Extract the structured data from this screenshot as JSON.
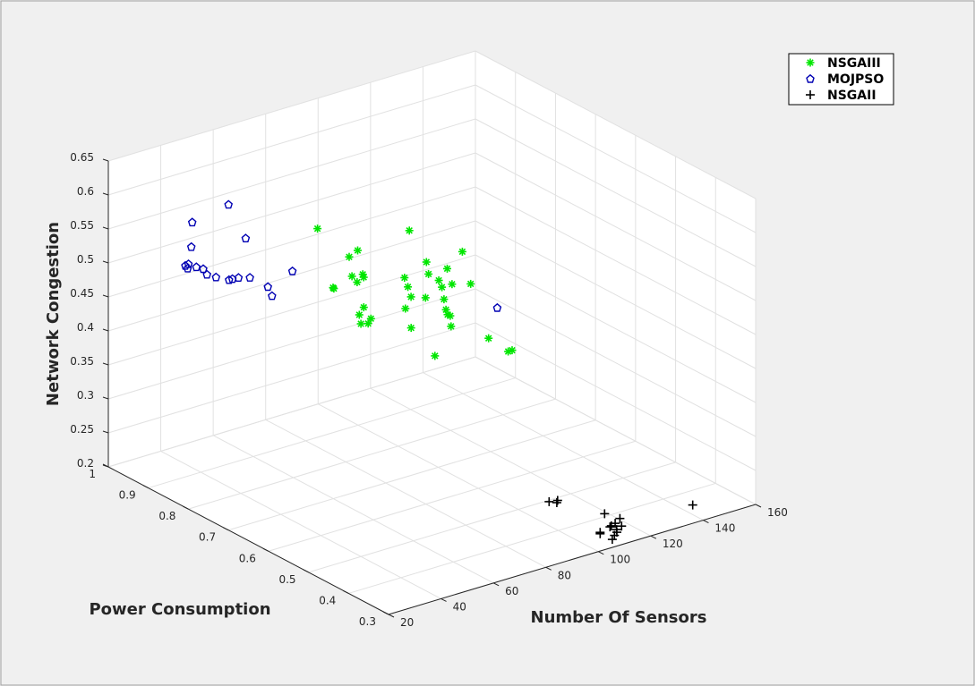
{
  "chart_data": {
    "type": "scatter3d",
    "title": "",
    "xlabel": "Number Of Sensors",
    "ylabel": "Power Consumption",
    "zlabel": "Network Congestion",
    "xlim": [
      20,
      160
    ],
    "ylim": [
      0.3,
      1
    ],
    "zlim": [
      0.2,
      0.65
    ],
    "x_ticks": [
      "20",
      "40",
      "60",
      "80",
      "100",
      "120",
      "140",
      "160"
    ],
    "y_ticks": [
      "0.3",
      "0.4",
      "0.5",
      "0.6",
      "0.7",
      "0.8",
      "0.9",
      "1"
    ],
    "z_ticks": [
      "0.2",
      "0.25",
      "0.3",
      "0.35",
      "0.4",
      "0.45",
      "0.5",
      "0.55",
      "0.6",
      "0.65"
    ],
    "grid": true,
    "legend_position": "top-right",
    "series": [
      {
        "name": "NSGAIII",
        "marker": "asterisk",
        "color": "#00e600",
        "points": [
          [
            61.6,
            0.75,
            0.58
          ],
          [
            75.4,
            0.74,
            0.535
          ],
          [
            92.4,
            0.59,
            0.56
          ],
          [
            78.3,
            0.63,
            0.595
          ],
          [
            81.9,
            0.58,
            0.533
          ],
          [
            89.7,
            0.61,
            0.532
          ],
          [
            60.2,
            0.7,
            0.509
          ],
          [
            83.9,
            0.58,
            0.503
          ],
          [
            69.1,
            0.72,
            0.539
          ],
          [
            90.0,
            0.6,
            0.512
          ],
          [
            79.5,
            0.65,
            0.518
          ],
          [
            95.6,
            0.59,
            0.509
          ],
          [
            90.2,
            0.51,
            0.46
          ],
          [
            87.7,
            0.61,
            0.507
          ],
          [
            90.2,
            0.66,
            0.508
          ],
          [
            86.8,
            0.59,
            0.474
          ],
          [
            86.6,
            0.58,
            0.46
          ],
          [
            76.8,
            0.63,
            0.482
          ],
          [
            87.7,
            0.6,
            0.477
          ],
          [
            80.8,
            0.65,
            0.503
          ],
          [
            82.0,
            0.65,
            0.487
          ],
          [
            87.8,
            0.59,
            0.471
          ],
          [
            84.5,
            0.63,
            0.489
          ],
          [
            70.1,
            0.69,
            0.473
          ],
          [
            64.5,
            0.73,
            0.496
          ],
          [
            69.0,
            0.69,
            0.45
          ],
          [
            68.7,
            0.67,
            0.457
          ],
          [
            71.3,
            0.68,
            0.458
          ],
          [
            79.0,
            0.63,
            0.451
          ],
          [
            99.2,
            0.51,
            0.432
          ],
          [
            99.2,
            0.52,
            0.427
          ],
          [
            83.5,
            0.6,
            0.414
          ],
          [
            69.9,
            0.7,
            0.459
          ],
          [
            67.0,
            0.67,
            0.527
          ],
          [
            67.1,
            0.7,
            0.519
          ],
          [
            69.7,
            0.69,
            0.522
          ],
          [
            83.3,
            0.62,
            0.546
          ],
          [
            69.1,
            0.7,
            0.508
          ]
        ]
      },
      {
        "name": "MOJPSO",
        "marker": "diamond",
        "color": "#0000b3",
        "points": [
          [
            25.7,
            0.83,
            0.57
          ],
          [
            23.4,
            0.83,
            0.545
          ],
          [
            24.6,
            0.83,
            0.546
          ],
          [
            24.3,
            0.83,
            0.54
          ],
          [
            26.1,
            0.82,
            0.543
          ],
          [
            27.1,
            0.8,
            0.537
          ],
          [
            27.2,
            0.81,
            0.542
          ],
          [
            29.0,
            0.79,
            0.534
          ],
          [
            30.9,
            0.77,
            0.534
          ],
          [
            32.2,
            0.77,
            0.534
          ],
          [
            33.0,
            0.76,
            0.538
          ],
          [
            35.8,
            0.75,
            0.538
          ],
          [
            38.1,
            0.72,
            0.531
          ],
          [
            41.2,
            0.73,
            0.511
          ],
          [
            44.4,
            0.7,
            0.553
          ],
          [
            29.1,
            0.85,
            0.596
          ],
          [
            38.8,
            0.78,
            0.583
          ],
          [
            41.4,
            0.84,
            0.611
          ],
          [
            92.0,
            0.5,
            0.506
          ]
        ]
      },
      {
        "name": "NSGAII",
        "marker": "plus",
        "color": "#000000",
        "points": [
          [
            136.0,
            0.3,
            0.227
          ],
          [
            104.0,
            0.43,
            0.227
          ],
          [
            104.3,
            0.43,
            0.23
          ],
          [
            102.6,
            0.44,
            0.227
          ],
          [
            106.8,
            0.34,
            0.208
          ],
          [
            106.8,
            0.34,
            0.206
          ],
          [
            109.2,
            0.32,
            0.207
          ],
          [
            108.4,
            0.32,
            0.202
          ],
          [
            114.6,
            0.38,
            0.214
          ],
          [
            114.1,
            0.36,
            0.203
          ],
          [
            114.6,
            0.35,
            0.2
          ],
          [
            114.7,
            0.35,
            0.196
          ],
          [
            115.6,
            0.36,
            0.205
          ],
          [
            116.5,
            0.35,
            0.203
          ],
          [
            113.6,
            0.36,
            0.202
          ],
          [
            117.4,
            0.36,
            0.21
          ]
        ]
      }
    ]
  }
}
